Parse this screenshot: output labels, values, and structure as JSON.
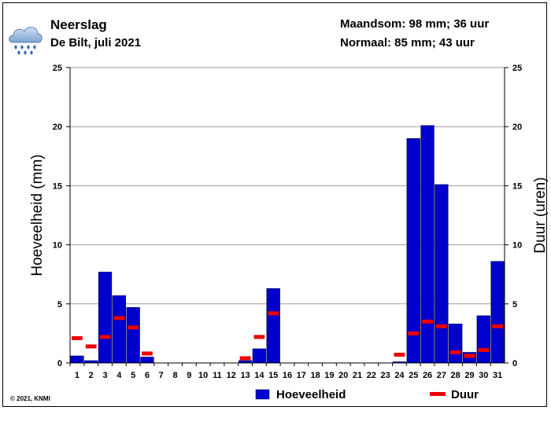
{
  "header": {
    "title": "Neerslag",
    "subtitle": "De Bilt, juli 2021",
    "month_sum": "Maandsom: 98 mm; 36 uur",
    "normal": "Normaal: 85 mm; 43 uur",
    "icon": "rain-cloud-icon"
  },
  "footer": {
    "copyright": "© 2021, KNMI"
  },
  "colors": {
    "bar": "#0000cc",
    "duration": "#ee0000"
  },
  "chart_data": {
    "type": "bar",
    "categories": [
      "1",
      "2",
      "3",
      "4",
      "5",
      "6",
      "7",
      "8",
      "9",
      "10",
      "11",
      "12",
      "13",
      "14",
      "15",
      "16",
      "17",
      "18",
      "19",
      "20",
      "21",
      "22",
      "23",
      "24",
      "25",
      "26",
      "27",
      "28",
      "29",
      "30",
      "31"
    ],
    "series": [
      {
        "name": "Hoeveelheid",
        "unit": "mm",
        "axis": "left",
        "values": [
          0.6,
          0.2,
          7.7,
          5.7,
          4.7,
          0.5,
          0,
          0,
          0,
          0,
          0,
          0,
          0.2,
          1.2,
          6.3,
          0,
          0,
          0,
          0,
          0,
          0,
          0,
          0,
          0.1,
          19.0,
          20.1,
          15.1,
          3.3,
          0.9,
          4.0,
          8.6
        ]
      },
      {
        "name": "Duur",
        "unit": "uren",
        "axis": "right",
        "values": [
          2.1,
          1.4,
          2.2,
          3.8,
          3.0,
          0.8,
          null,
          null,
          null,
          null,
          null,
          null,
          0.4,
          2.2,
          4.2,
          null,
          null,
          null,
          null,
          null,
          null,
          null,
          null,
          0.7,
          2.5,
          3.5,
          3.1,
          0.9,
          0.6,
          1.1,
          3.1
        ]
      }
    ],
    "ylabel": "Hoeveelheid (mm)",
    "y2label": "Duur (uren)",
    "ylim": [
      0,
      25
    ],
    "y2lim": [
      0,
      25
    ],
    "yticks": [
      0,
      5,
      10,
      15,
      20,
      25
    ],
    "grid": true,
    "legend": [
      "Hoeveelheid",
      "Duur"
    ],
    "legend_position": "bottom"
  }
}
